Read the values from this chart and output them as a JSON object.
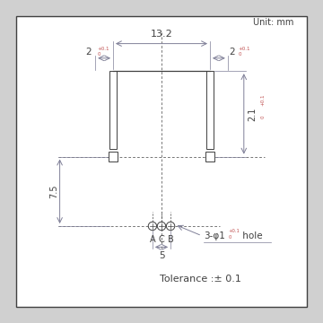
{
  "bg_color": "#d0d0d0",
  "box_color": "#ffffff",
  "line_color": "#404040",
  "dim_color": "#808098",
  "text_color": "#404040",
  "red_text_color": "#c05050",
  "unit_text": "Unit: mm",
  "tolerance_text": "Tolerance :± 0.1",
  "dim_13_2": "13.2",
  "dim_5": "5",
  "dim_7_5": "7.5",
  "dim_2_1": "2.1",
  "label_A": "A",
  "label_C": "C",
  "label_B": "B"
}
